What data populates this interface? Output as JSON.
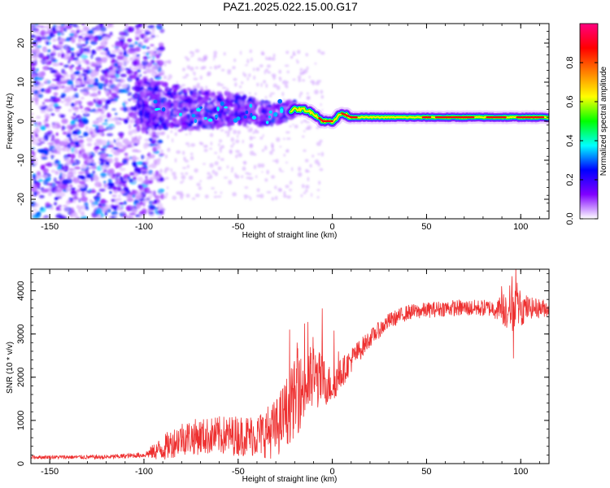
{
  "title": "PAZ1.2025.022.15.00.G17",
  "chart_data": [
    {
      "type": "heatmap",
      "name": "spectrogram",
      "xlabel": "Height of straight line (km)",
      "ylabel": "Frequency (Hz)",
      "xlim": [
        -160,
        115
      ],
      "ylim": [
        -25,
        25
      ],
      "xticks": [
        -150,
        -100,
        -50,
        0,
        50,
        100
      ],
      "yticks": [
        -20,
        -10,
        0,
        10,
        20
      ],
      "ridge": [
        {
          "x": -100,
          "y": 4
        },
        {
          "x": -90,
          "y": 4
        },
        {
          "x": -80,
          "y": 3
        },
        {
          "x": -70,
          "y": 3
        },
        {
          "x": -60,
          "y": 3
        },
        {
          "x": -50,
          "y": 3
        },
        {
          "x": -40,
          "y": 2
        },
        {
          "x": -30,
          "y": 2
        },
        {
          "x": -20,
          "y": 3
        },
        {
          "x": -15,
          "y": 3
        },
        {
          "x": -10,
          "y": 2
        },
        {
          "x": -5,
          "y": 0
        },
        {
          "x": 0,
          "y": 0
        },
        {
          "x": 5,
          "y": 2
        },
        {
          "x": 10,
          "y": 1
        },
        {
          "x": 20,
          "y": 1
        },
        {
          "x": 50,
          "y": 1
        },
        {
          "x": 80,
          "y": 1
        },
        {
          "x": 100,
          "y": 1
        },
        {
          "x": 115,
          "y": 1
        }
      ],
      "colorbar": {
        "label": "Normalized spectral amplitude",
        "range": [
          0.0,
          1.0
        ],
        "ticks": [
          "0.0",
          "0.2",
          "0.4",
          "0.6",
          "0.8"
        ],
        "colors": [
          "#ffffff",
          "#8000ff",
          "#0000ff",
          "#00ffff",
          "#00ff00",
          "#ffff00",
          "#ff8000",
          "#ff0000",
          "#ff0080"
        ]
      }
    },
    {
      "type": "line",
      "name": "snr",
      "xlabel": "Height of straight line (km)",
      "ylabel": "SNR (10 * v/v)",
      "xlim": [
        -160,
        115
      ],
      "ylim": [
        0,
        4500
      ],
      "xticks": [
        -150,
        -100,
        -50,
        0,
        50,
        100
      ],
      "yticks": [
        0,
        1000,
        2000,
        3000,
        4000
      ],
      "color": "#ee3030",
      "envelope": [
        {
          "x": -160,
          "y": 150
        },
        {
          "x": -120,
          "y": 150
        },
        {
          "x": -100,
          "y": 200
        },
        {
          "x": -90,
          "y": 350
        },
        {
          "x": -80,
          "y": 600
        },
        {
          "x": -60,
          "y": 650
        },
        {
          "x": -40,
          "y": 650
        },
        {
          "x": -30,
          "y": 800
        },
        {
          "x": -20,
          "y": 1500
        },
        {
          "x": -10,
          "y": 2000
        },
        {
          "x": 0,
          "y": 1800
        },
        {
          "x": 10,
          "y": 2400
        },
        {
          "x": 20,
          "y": 2900
        },
        {
          "x": 30,
          "y": 3300
        },
        {
          "x": 40,
          "y": 3500
        },
        {
          "x": 60,
          "y": 3600
        },
        {
          "x": 80,
          "y": 3600
        },
        {
          "x": 100,
          "y": 3600
        },
        {
          "x": 115,
          "y": 3600
        }
      ],
      "noise": [
        {
          "x": -160,
          "y": 40
        },
        {
          "x": -100,
          "y": 60
        },
        {
          "x": -90,
          "y": 300
        },
        {
          "x": -80,
          "y": 400
        },
        {
          "x": -40,
          "y": 500
        },
        {
          "x": -20,
          "y": 900
        },
        {
          "x": -10,
          "y": 800
        },
        {
          "x": 0,
          "y": 400
        },
        {
          "x": 20,
          "y": 200
        },
        {
          "x": 40,
          "y": 180
        },
        {
          "x": 85,
          "y": 200
        },
        {
          "x": 95,
          "y": 600
        },
        {
          "x": 105,
          "y": 250
        },
        {
          "x": 115,
          "y": 200
        }
      ]
    }
  ]
}
